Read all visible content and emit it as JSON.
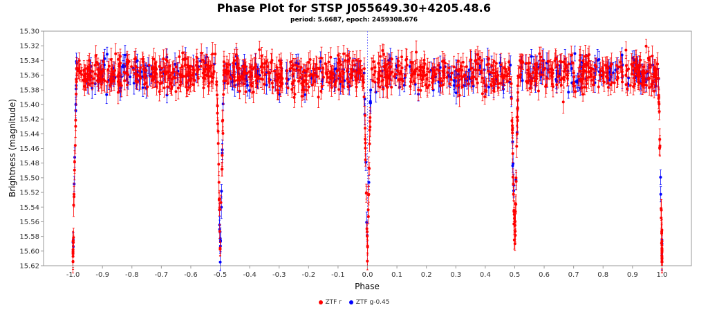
{
  "chart_data": {
    "type": "scatter",
    "title": "Phase Plot for STSP J055649.30+4205.48.6",
    "subtitle": "period: 5.6687, epoch: 2459308.676",
    "xlabel": "Phase",
    "ylabel": "Brightness (magnitude)",
    "xlim": [
      -1.1,
      1.1
    ],
    "ylim": [
      15.3,
      15.62
    ],
    "y_inverted": true,
    "x_ticks": [
      "-1.0",
      "-0.9",
      "-0.8",
      "-0.7",
      "-0.6",
      "-0.5",
      "-0.4",
      "-0.3",
      "-0.2",
      "-0.1",
      "0.0",
      "0.1",
      "0.2",
      "0.3",
      "0.4",
      "0.5",
      "0.6",
      "0.7",
      "0.8",
      "0.9",
      "1.0"
    ],
    "y_ticks": [
      "15.30",
      "15.32",
      "15.34",
      "15.36",
      "15.38",
      "15.40",
      "15.42",
      "15.44",
      "15.46",
      "15.48",
      "15.50",
      "15.52",
      "15.54",
      "15.56",
      "15.58",
      "15.60",
      "15.62"
    ],
    "reference_line_x": 0.0,
    "model": {
      "baseline_mag": 15.358,
      "scatter_mag": 0.012,
      "error_bar_mag": 0.012,
      "period_phase": 1.0,
      "primary_eclipse": {
        "phase": 0.0,
        "depth_mag": 0.245,
        "half_width_phase": 0.012
      },
      "secondary_eclipse": {
        "phase": 0.5,
        "depth_mag": 0.245,
        "half_width_phase": 0.012
      }
    },
    "series": [
      {
        "name": "ZTF r",
        "color": "#ff0000",
        "n_points": 1150
      },
      {
        "name": "ZTF g-0.45",
        "color": "#0000ff",
        "n_points": 380
      }
    ],
    "legend_position": "bottom-center"
  }
}
